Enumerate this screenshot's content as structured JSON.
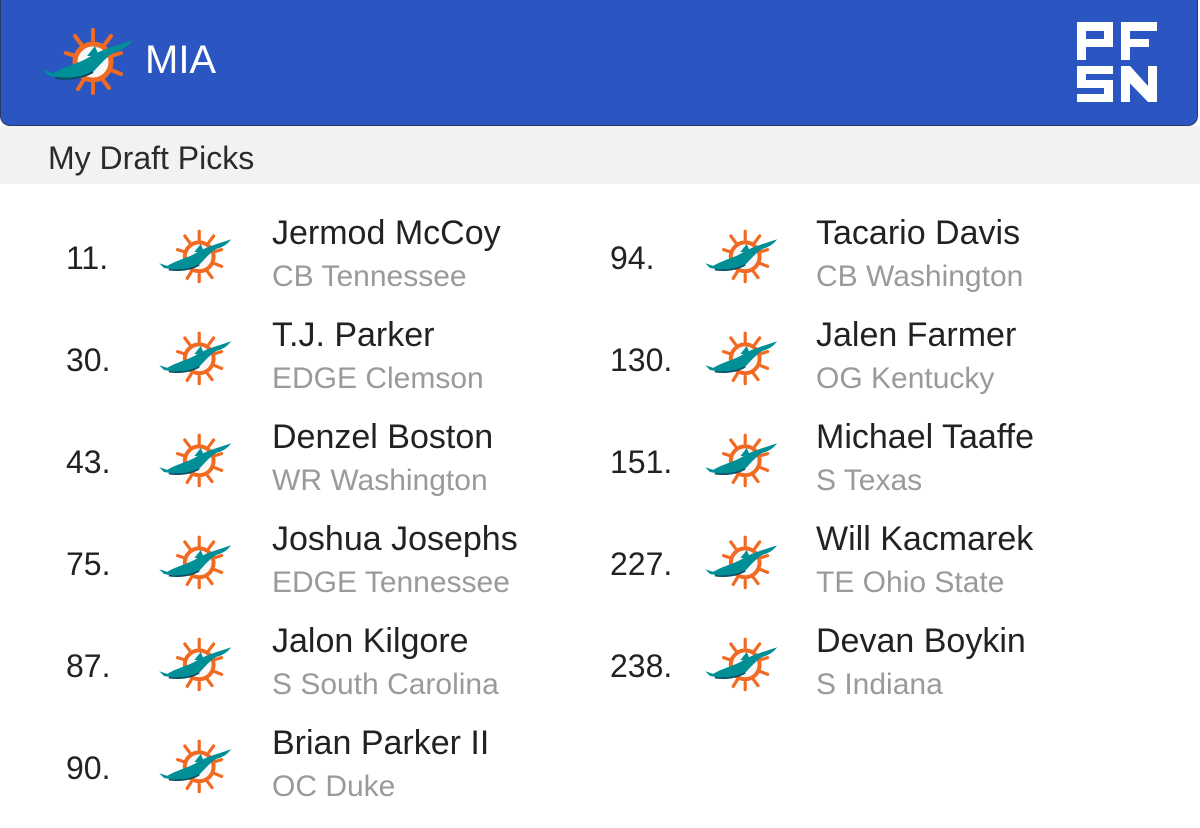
{
  "header": {
    "team_abbr": "MIA",
    "team_logo_icon": "dolphins-logo-icon",
    "brand_logo_icon": "pfsn-logo-icon",
    "background_color": "#2b56c1"
  },
  "section": {
    "title": "My Draft Picks"
  },
  "picks": [
    {
      "number": "11.",
      "name": "Jermod McCoy",
      "position_school": "CB Tennessee"
    },
    {
      "number": "30.",
      "name": "T.J. Parker",
      "position_school": "EDGE Clemson"
    },
    {
      "number": "43.",
      "name": "Denzel Boston",
      "position_school": "WR Washington"
    },
    {
      "number": "75.",
      "name": "Joshua Josephs",
      "position_school": "EDGE Tennessee"
    },
    {
      "number": "87.",
      "name": "Jalon Kilgore",
      "position_school": "S South Carolina"
    },
    {
      "number": "90.",
      "name": "Brian Parker II",
      "position_school": "OC Duke"
    },
    {
      "number": "94.",
      "name": "Tacario Davis",
      "position_school": "CB Washington"
    },
    {
      "number": "130.",
      "name": "Jalen Farmer",
      "position_school": "OG Kentucky"
    },
    {
      "number": "151.",
      "name": "Michael Taaffe",
      "position_school": "S Texas"
    },
    {
      "number": "227.",
      "name": "Will Kacmarek",
      "position_school": "TE Ohio State"
    },
    {
      "number": "238.",
      "name": "Devan Boykin",
      "position_school": "S Indiana"
    }
  ]
}
